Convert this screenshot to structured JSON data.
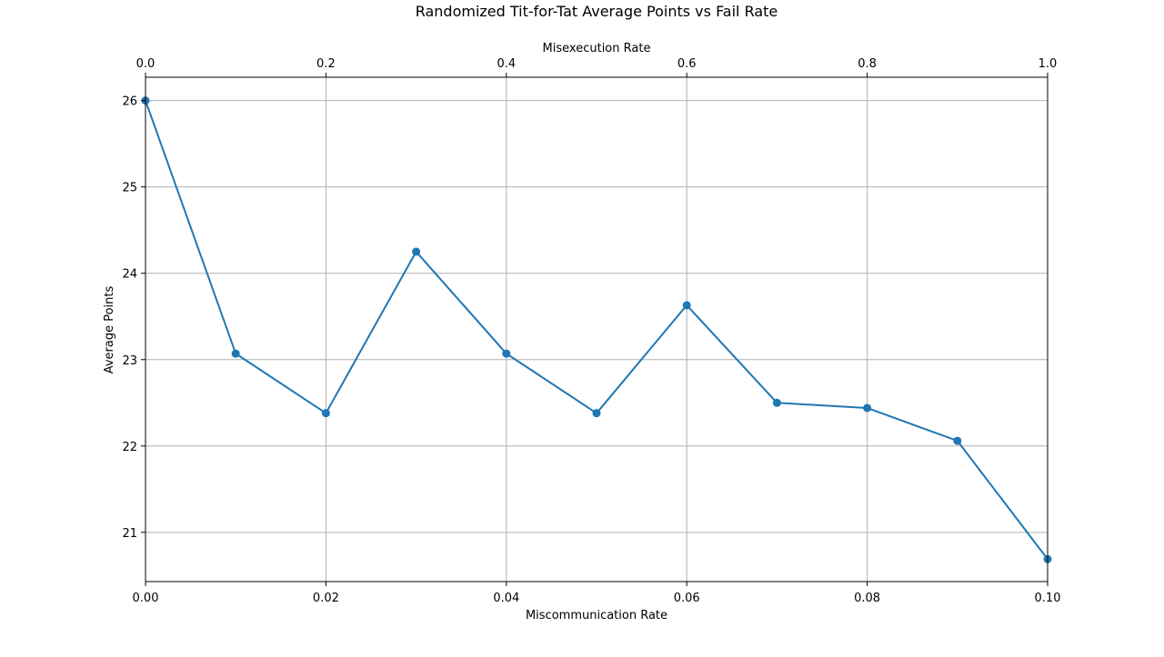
{
  "chart_data": {
    "type": "line",
    "title": "Randomized Tit-for-Tat Average Points vs Fail Rate",
    "xlabel": "Miscommunication Rate",
    "x2label": "Misexecution Rate",
    "ylabel": "Average Points",
    "x": [
      0.0,
      0.01,
      0.02,
      0.03,
      0.04,
      0.05,
      0.06,
      0.07,
      0.08,
      0.09,
      0.1
    ],
    "x2": [
      0.0,
      0.1,
      0.2,
      0.3,
      0.4,
      0.5,
      0.6,
      0.7,
      0.8,
      0.9,
      1.0
    ],
    "series": [
      {
        "values": [
          26.0,
          23.07,
          22.38,
          24.25,
          23.07,
          22.38,
          23.63,
          22.5,
          22.44,
          22.06,
          20.69
        ]
      }
    ],
    "xlim": [
      0,
      0.1
    ],
    "x2lim": [
      0,
      1
    ],
    "ylim": [
      20.43,
      26.27
    ],
    "x_ticks": [
      "0.00",
      "0.02",
      "0.04",
      "0.06",
      "0.08",
      "0.10"
    ],
    "x2_ticks": [
      "0.0",
      "0.2",
      "0.4",
      "0.6",
      "0.8",
      "1.0"
    ],
    "y_ticks": [
      "21",
      "22",
      "23",
      "24",
      "25",
      "26"
    ],
    "grid": true,
    "marker": "circle",
    "colors": {
      "line": "#1f77b4",
      "grid": "#b0b0b0",
      "axes": "#000000"
    }
  }
}
